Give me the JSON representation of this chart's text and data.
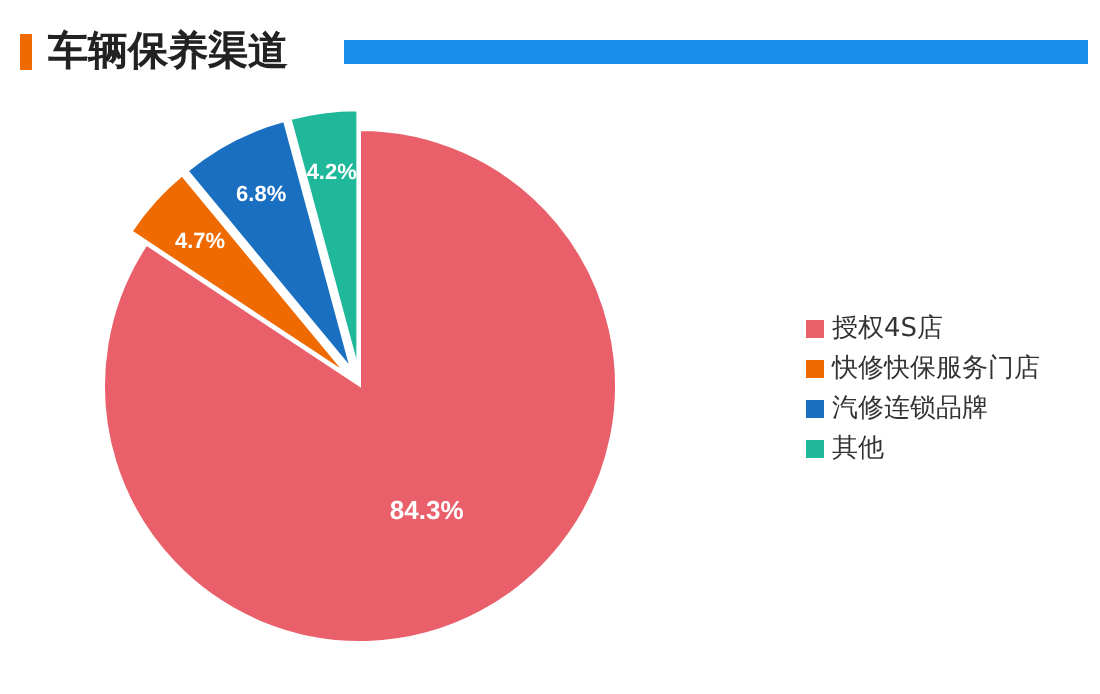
{
  "chart_data": {
    "type": "pie",
    "title": "车辆保养渠道",
    "categories": [
      "授权4S店",
      "快修快保服务门店",
      "汽修连锁品牌",
      "其他"
    ],
    "values": [
      84.3,
      4.7,
      6.8,
      4.2
    ],
    "colors": [
      "#e95f6a",
      "#ef6a00",
      "#1a6fc1",
      "#1fb89a"
    ],
    "value_labels": [
      "84.3%",
      "4.7%",
      "6.8%",
      "4.2%"
    ],
    "legend": "right"
  }
}
